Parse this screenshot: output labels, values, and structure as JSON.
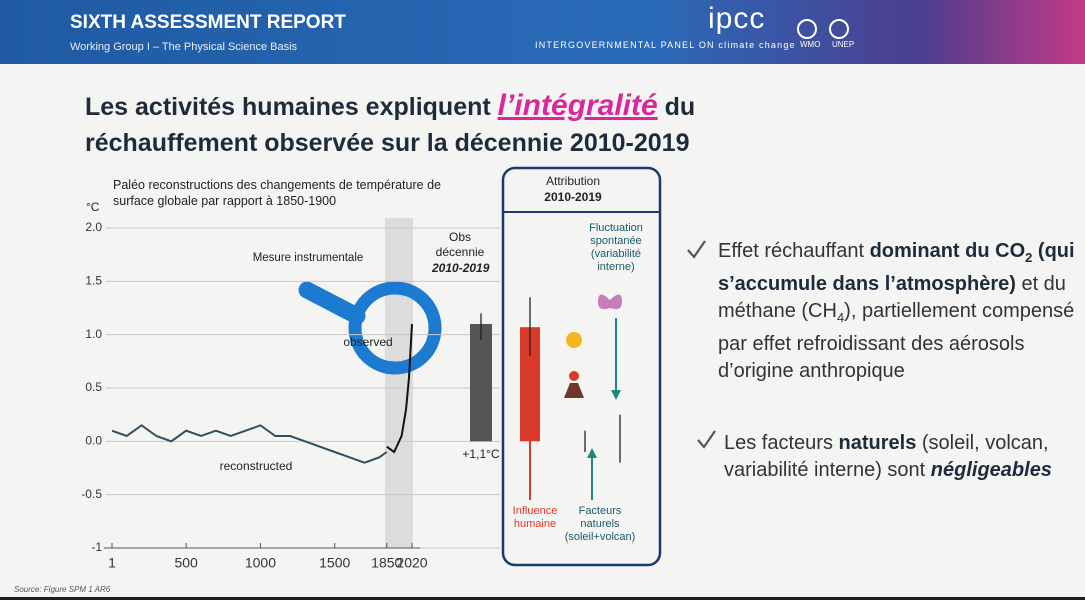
{
  "header": {
    "title": "SIXTH ASSESSMENT REPORT",
    "subtitle": "Working Group I – The Physical Science Basis",
    "logo": "ipcc",
    "org_name": "INTERGOVERNMENTAL PANEL ON climate change",
    "partners": [
      "WMO",
      "UNEP"
    ]
  },
  "slide_title": {
    "before": "Les activités humaines expliquent ",
    "highlight": "l’intégralité",
    "after": " du",
    "line2": "réchauffement observée sur la décennie 2010-2019"
  },
  "chart_data": [
    {
      "type": "line",
      "title": "Paléo reconstructions des changements de température de surface globale par rapport à 1850-1900",
      "y_label": "°C",
      "x": [
        1,
        100,
        200,
        300,
        400,
        500,
        600,
        700,
        800,
        900,
        1000,
        1100,
        1200,
        1300,
        1400,
        1500,
        1600,
        1700,
        1800,
        1850,
        1900,
        1950,
        1980,
        2000,
        2020
      ],
      "series": [
        {
          "name": "reconstructed",
          "color": "#2f5060",
          "values": [
            0.1,
            0.05,
            0.15,
            0.05,
            0.0,
            0.1,
            0.05,
            0.1,
            0.05,
            0.1,
            0.15,
            0.05,
            0.05,
            0.0,
            -0.05,
            -0.1,
            -0.15,
            -0.2,
            -0.15,
            -0.1,
            null,
            null,
            null,
            null,
            null
          ]
        },
        {
          "name": "observed",
          "color": "#111111",
          "values": [
            null,
            null,
            null,
            null,
            null,
            null,
            null,
            null,
            null,
            null,
            null,
            null,
            null,
            null,
            null,
            null,
            null,
            null,
            null,
            -0.05,
            -0.1,
            0.05,
            0.3,
            0.6,
            1.1
          ]
        }
      ],
      "annotations": [
        "Mesure instrumentale"
      ],
      "xlim": [
        1,
        2020
      ],
      "xticks": [
        1,
        500,
        1000,
        1500,
        1850,
        2020
      ],
      "ylim": [
        -1,
        2
      ],
      "yticks": [
        {
          "value": 2,
          "label": "2.0"
        },
        {
          "value": 1.5,
          "label": "1.5"
        },
        {
          "value": 1,
          "label": "1.0"
        },
        {
          "value": 0.5,
          "label": "0.5"
        },
        {
          "value": 0,
          "label": "0.0"
        },
        {
          "value": -0.5,
          "label": "-0.5"
        },
        -1
      ],
      "grid": true
    },
    {
      "type": "bar",
      "title": "Obs décennie",
      "subtitle": "2010-2019",
      "values": [
        1.1
      ],
      "value_labels": [
        "+1,1°C"
      ],
      "low": [
        0.95
      ],
      "high": [
        1.2
      ],
      "color": "#555555",
      "ylim": [
        -1,
        2
      ]
    },
    {
      "type": "bar",
      "title": "Attribution",
      "subtitle": "2010-2019",
      "categories": [
        "Influence humaine",
        "Facteurs naturels (soleil+volcan)",
        "Fluctuation spontanée (variabilité interne)"
      ],
      "values": [
        1.07,
        0,
        0
      ],
      "low": [
        0.8,
        -0.1,
        -0.2
      ],
      "high": [
        1.35,
        0.1,
        0.25
      ],
      "colors": [
        "#d93a2b",
        "#1a8a7a",
        "#1a8a7a"
      ],
      "ylim": [
        -1,
        2
      ]
    }
  ],
  "bullets": [
    {
      "segments": [
        {
          "text": "Effet réchauffant "
        },
        {
          "text": "dominant du CO",
          "bold": true
        },
        {
          "text": "2",
          "bold": true,
          "sub": true
        },
        {
          "text": " (qui s’accumule dans l’atmosphère)",
          "bold": true
        },
        {
          "text": " et du méthane (CH"
        },
        {
          "text": "4",
          "sub": true
        },
        {
          "text": "), partiellement compensé par effet refroidissant des aérosols d’origine anthropique"
        }
      ]
    },
    {
      "segments": [
        {
          "text": "Les facteurs "
        },
        {
          "text": "naturels",
          "bold": true
        },
        {
          "text": " (soleil, volcan, variabilité interne) sont "
        },
        {
          "text": "négligeables",
          "bold": true,
          "italic": true
        }
      ]
    }
  ],
  "source": "Source: Figure SPM 1 AR6"
}
